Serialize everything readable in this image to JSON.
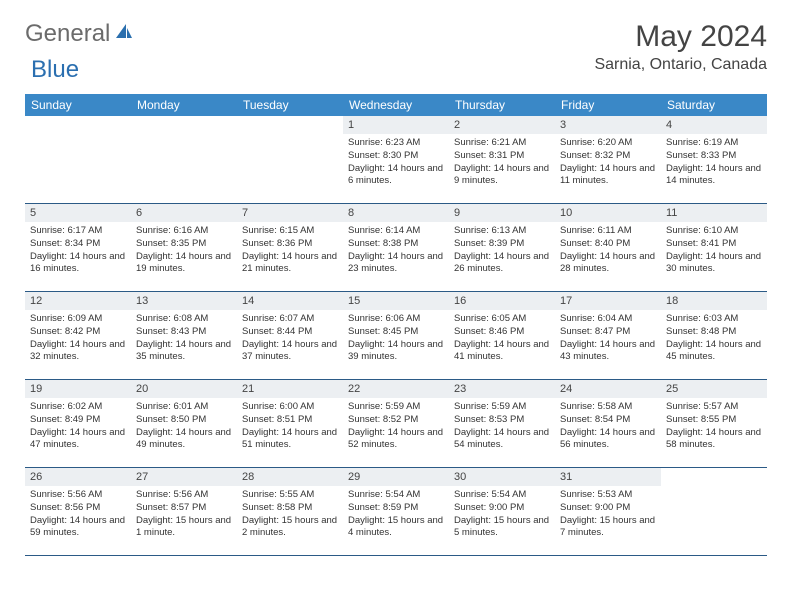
{
  "brand": {
    "textA": "General",
    "textB": "Blue"
  },
  "title": "May 2024",
  "location": "Sarnia, Ontario, Canada",
  "colors": {
    "headerBg": "#3a88c7",
    "headerText": "#ffffff",
    "dayNumBg": "#eceff2",
    "rowBorder": "#2b5a86",
    "logoGray": "#6b6b6b",
    "logoBlue": "#2b6fb0"
  },
  "columns": [
    "Sunday",
    "Monday",
    "Tuesday",
    "Wednesday",
    "Thursday",
    "Friday",
    "Saturday"
  ],
  "leadingBlanks": 3,
  "days": [
    {
      "n": "1",
      "sr": "6:23 AM",
      "ss": "8:30 PM",
      "dl": "14 hours and 6 minutes."
    },
    {
      "n": "2",
      "sr": "6:21 AM",
      "ss": "8:31 PM",
      "dl": "14 hours and 9 minutes."
    },
    {
      "n": "3",
      "sr": "6:20 AM",
      "ss": "8:32 PM",
      "dl": "14 hours and 11 minutes."
    },
    {
      "n": "4",
      "sr": "6:19 AM",
      "ss": "8:33 PM",
      "dl": "14 hours and 14 minutes."
    },
    {
      "n": "5",
      "sr": "6:17 AM",
      "ss": "8:34 PM",
      "dl": "14 hours and 16 minutes."
    },
    {
      "n": "6",
      "sr": "6:16 AM",
      "ss": "8:35 PM",
      "dl": "14 hours and 19 minutes."
    },
    {
      "n": "7",
      "sr": "6:15 AM",
      "ss": "8:36 PM",
      "dl": "14 hours and 21 minutes."
    },
    {
      "n": "8",
      "sr": "6:14 AM",
      "ss": "8:38 PM",
      "dl": "14 hours and 23 minutes."
    },
    {
      "n": "9",
      "sr": "6:13 AM",
      "ss": "8:39 PM",
      "dl": "14 hours and 26 minutes."
    },
    {
      "n": "10",
      "sr": "6:11 AM",
      "ss": "8:40 PM",
      "dl": "14 hours and 28 minutes."
    },
    {
      "n": "11",
      "sr": "6:10 AM",
      "ss": "8:41 PM",
      "dl": "14 hours and 30 minutes."
    },
    {
      "n": "12",
      "sr": "6:09 AM",
      "ss": "8:42 PM",
      "dl": "14 hours and 32 minutes."
    },
    {
      "n": "13",
      "sr": "6:08 AM",
      "ss": "8:43 PM",
      "dl": "14 hours and 35 minutes."
    },
    {
      "n": "14",
      "sr": "6:07 AM",
      "ss": "8:44 PM",
      "dl": "14 hours and 37 minutes."
    },
    {
      "n": "15",
      "sr": "6:06 AM",
      "ss": "8:45 PM",
      "dl": "14 hours and 39 minutes."
    },
    {
      "n": "16",
      "sr": "6:05 AM",
      "ss": "8:46 PM",
      "dl": "14 hours and 41 minutes."
    },
    {
      "n": "17",
      "sr": "6:04 AM",
      "ss": "8:47 PM",
      "dl": "14 hours and 43 minutes."
    },
    {
      "n": "18",
      "sr": "6:03 AM",
      "ss": "8:48 PM",
      "dl": "14 hours and 45 minutes."
    },
    {
      "n": "19",
      "sr": "6:02 AM",
      "ss": "8:49 PM",
      "dl": "14 hours and 47 minutes."
    },
    {
      "n": "20",
      "sr": "6:01 AM",
      "ss": "8:50 PM",
      "dl": "14 hours and 49 minutes."
    },
    {
      "n": "21",
      "sr": "6:00 AM",
      "ss": "8:51 PM",
      "dl": "14 hours and 51 minutes."
    },
    {
      "n": "22",
      "sr": "5:59 AM",
      "ss": "8:52 PM",
      "dl": "14 hours and 52 minutes."
    },
    {
      "n": "23",
      "sr": "5:59 AM",
      "ss": "8:53 PM",
      "dl": "14 hours and 54 minutes."
    },
    {
      "n": "24",
      "sr": "5:58 AM",
      "ss": "8:54 PM",
      "dl": "14 hours and 56 minutes."
    },
    {
      "n": "25",
      "sr": "5:57 AM",
      "ss": "8:55 PM",
      "dl": "14 hours and 58 minutes."
    },
    {
      "n": "26",
      "sr": "5:56 AM",
      "ss": "8:56 PM",
      "dl": "14 hours and 59 minutes."
    },
    {
      "n": "27",
      "sr": "5:56 AM",
      "ss": "8:57 PM",
      "dl": "15 hours and 1 minute."
    },
    {
      "n": "28",
      "sr": "5:55 AM",
      "ss": "8:58 PM",
      "dl": "15 hours and 2 minutes."
    },
    {
      "n": "29",
      "sr": "5:54 AM",
      "ss": "8:59 PM",
      "dl": "15 hours and 4 minutes."
    },
    {
      "n": "30",
      "sr": "5:54 AM",
      "ss": "9:00 PM",
      "dl": "15 hours and 5 minutes."
    },
    {
      "n": "31",
      "sr": "5:53 AM",
      "ss": "9:00 PM",
      "dl": "15 hours and 7 minutes."
    }
  ],
  "labels": {
    "sunrise": "Sunrise:",
    "sunset": "Sunset:",
    "daylight": "Daylight:"
  }
}
